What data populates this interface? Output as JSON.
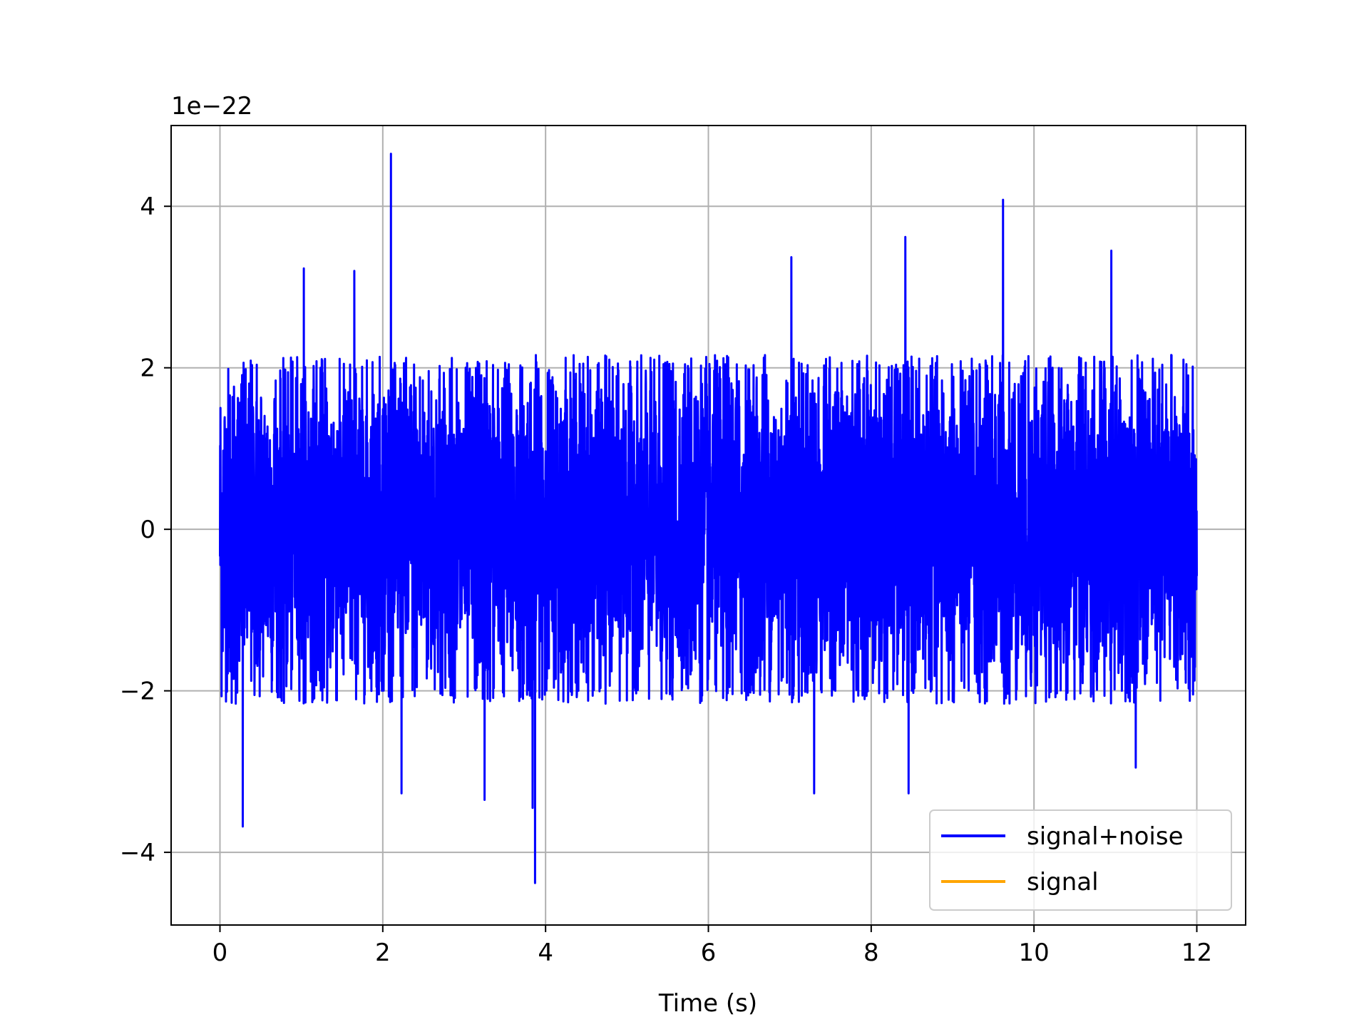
{
  "chart_data": {
    "type": "line",
    "title": "",
    "xlabel": "Time (s)",
    "ylabel": "",
    "y_offset_label": "1e−22",
    "xlim": [
      -0.6,
      12.6
    ],
    "ylim": [
      -4.9,
      5.0
    ],
    "x_ticks": [
      0,
      2,
      4,
      6,
      8,
      10,
      12
    ],
    "x_tick_labels": [
      "0",
      "2",
      "4",
      "6",
      "8",
      "10",
      "12"
    ],
    "y_ticks": [
      -4,
      -2,
      0,
      2,
      4
    ],
    "y_tick_labels": [
      "−4",
      "−2",
      "0",
      "2",
      "4"
    ],
    "grid": true,
    "legend_position": "lower-right",
    "series": [
      {
        "name": "signal+noise",
        "color": "#0000ff",
        "x_range": [
          0,
          12
        ],
        "typical_envelope": [
          -1.8,
          1.8
        ],
        "peaks": [
          {
            "x": 2.1,
            "y": 4.65
          },
          {
            "x": 9.62,
            "y": 4.08
          },
          {
            "x": 10.95,
            "y": 3.45
          },
          {
            "x": 8.42,
            "y": 3.62
          },
          {
            "x": 7.02,
            "y": 3.37
          },
          {
            "x": 1.03,
            "y": 3.23
          },
          {
            "x": 1.65,
            "y": 3.2
          },
          {
            "x": 0.28,
            "y": -3.68
          },
          {
            "x": 3.87,
            "y": -4.38
          },
          {
            "x": 3.84,
            "y": -3.45
          },
          {
            "x": 8.46,
            "y": -3.27
          },
          {
            "x": 7.3,
            "y": -3.27
          },
          {
            "x": 2.23,
            "y": -3.27
          },
          {
            "x": 3.25,
            "y": -3.35
          },
          {
            "x": 11.25,
            "y": -2.95
          }
        ]
      },
      {
        "name": "signal",
        "color": "#ffa500",
        "x_range": [
          0,
          12
        ],
        "values_constant": 0
      }
    ]
  }
}
